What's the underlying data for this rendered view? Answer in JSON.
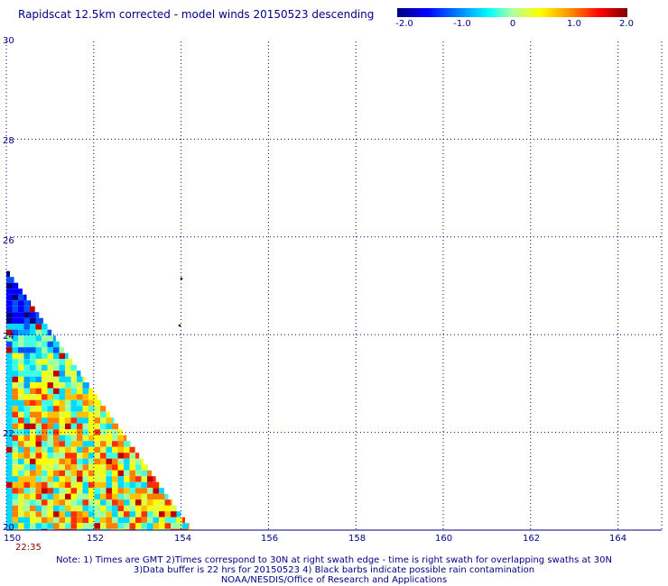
{
  "title": "Rapidscat 12.5km corrected - model winds 20150523 descending",
  "colorbar": {
    "ticks": [
      {
        "label": "-2.0",
        "value": -2.0
      },
      {
        "label": "-1.0",
        "value": -1.0
      },
      {
        "label": "0",
        "value": 0.0
      },
      {
        "label": "1.0",
        "value": 1.0
      },
      {
        "label": "2.0",
        "value": 2.0
      }
    ]
  },
  "map": {
    "lon_range": [
      150,
      165
    ],
    "lat_range": [
      20,
      30
    ],
    "lon_ticks": [
      "150",
      "152",
      "154",
      "156",
      "158",
      "160",
      "162",
      "164"
    ],
    "lat_ticks": [
      "30",
      "28",
      "26",
      "24",
      "22",
      "20"
    ],
    "time_label": "22:35",
    "swath": {
      "lat_top": 25.3,
      "lon_at_top": 150.0,
      "lon_at_bottom": 154.3
    }
  },
  "notes": [
    "Note: 1) Times are GMT 2)Times correspond to 30N at right swath edge - time is right swath for overlapping swaths at 30N",
    "3)Data buffer is 22 hrs for 20150523 4) Black barbs indicate possible rain contamination",
    "NOAA/NESDIS/Office of Research and Applications"
  ]
}
